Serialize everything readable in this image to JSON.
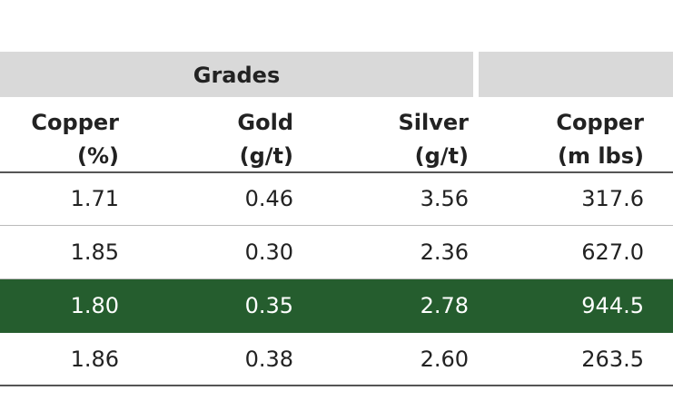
{
  "header": {
    "group": "Grades"
  },
  "columns": [
    {
      "lines": [
        "Copper",
        "(%)"
      ]
    },
    {
      "lines": [
        "Gold",
        "(g/t)"
      ]
    },
    {
      "lines": [
        "Silver",
        "(g/t)"
      ]
    },
    {
      "lines": [
        "Copper",
        "(m lbs)"
      ]
    }
  ],
  "table": {
    "rows": [
      [
        "1.71",
        "0.46",
        "3.56",
        "317.6"
      ],
      [
        "1.85",
        "0.30",
        "2.36",
        "627.0"
      ],
      [
        "1.80",
        "0.35",
        "2.78",
        "944.5"
      ],
      [
        "1.86",
        "0.38",
        "2.60",
        "263.5"
      ]
    ]
  }
}
